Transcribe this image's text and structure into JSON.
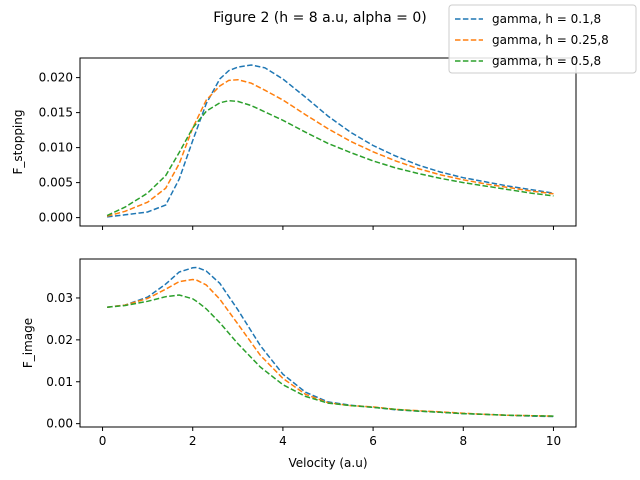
{
  "chart_data": {
    "type": "line",
    "title": "Figure 2 (h = 8 a.u, alpha = 0)",
    "xlabel": "Velocity (a.u)",
    "xlim": [
      -0.5,
      10.5
    ],
    "xticks": [
      0,
      2,
      4,
      6,
      8,
      10
    ],
    "legend_position": "top-right",
    "legend": [
      {
        "label": "gamma, h = 0.1,8",
        "color": "#1f77b4"
      },
      {
        "label": "gamma, h = 0.25,8",
        "color": "#ff7f0e"
      },
      {
        "label": "gamma, h = 0.5,8",
        "color": "#2ca02c"
      }
    ],
    "panels": [
      {
        "ylabel": "F_stopping",
        "ylim": [
          -0.0012,
          0.0228
        ],
        "yticks": [
          0.0,
          0.005,
          0.01,
          0.015,
          0.02
        ],
        "ytick_labels": [
          "0.000",
          "0.005",
          "0.010",
          "0.015",
          "0.020"
        ],
        "series": [
          {
            "name": "gamma, h = 0.1,8",
            "color": "#1f77b4",
            "x": [
              0.1,
              0.5,
              1.0,
              1.4,
              1.7,
              2.0,
              2.3,
              2.6,
              2.8,
              3.0,
              3.3,
              3.6,
              4.0,
              4.5,
              5.0,
              5.5,
              6.0,
              6.5,
              7.0,
              7.5,
              8.0,
              8.5,
              9.0,
              9.5,
              10.0
            ],
            "y": [
              0.0001,
              0.0004,
              0.0008,
              0.0018,
              0.0055,
              0.011,
              0.0163,
              0.0198,
              0.021,
              0.0215,
              0.0218,
              0.0214,
              0.0198,
              0.0172,
              0.0145,
              0.0122,
              0.0103,
              0.0088,
              0.0075,
              0.0065,
              0.0057,
              0.0051,
              0.0045,
              0.004,
              0.0035
            ]
          },
          {
            "name": "gamma, h = 0.25,8",
            "color": "#ff7f0e",
            "x": [
              0.1,
              0.5,
              1.0,
              1.4,
              1.7,
              2.0,
              2.3,
              2.6,
              2.8,
              3.0,
              3.3,
              3.6,
              4.0,
              4.5,
              5.0,
              5.5,
              6.0,
              6.5,
              7.0,
              7.5,
              8.0,
              8.5,
              9.0,
              9.5,
              10.0
            ],
            "y": [
              0.0002,
              0.0009,
              0.0022,
              0.0042,
              0.0077,
              0.0128,
              0.0168,
              0.0188,
              0.0196,
              0.0197,
              0.0192,
              0.0182,
              0.0168,
              0.0147,
              0.0127,
              0.0109,
              0.0094,
              0.0081,
              0.007,
              0.0061,
              0.0054,
              0.0048,
              0.0043,
              0.0038,
              0.0034
            ]
          },
          {
            "name": "gamma, h = 0.5,8",
            "color": "#2ca02c",
            "x": [
              0.1,
              0.5,
              1.0,
              1.4,
              1.7,
              2.0,
              2.3,
              2.6,
              2.8,
              3.0,
              3.3,
              3.6,
              4.0,
              4.5,
              5.0,
              5.5,
              6.0,
              6.5,
              7.0,
              7.5,
              8.0,
              8.5,
              9.0,
              9.5,
              10.0
            ],
            "y": [
              0.0003,
              0.0015,
              0.0035,
              0.006,
              0.0093,
              0.0128,
              0.0152,
              0.0164,
              0.0167,
              0.0166,
              0.016,
              0.0151,
              0.0139,
              0.0122,
              0.0106,
              0.0093,
              0.0081,
              0.0071,
              0.0063,
              0.0056,
              0.005,
              0.0045,
              0.004,
              0.0035,
              0.0031
            ]
          }
        ]
      },
      {
        "ylabel": "F_image",
        "xlabel": "Velocity (a.u)",
        "ylim": [
          -0.0008,
          0.0393
        ],
        "yticks": [
          0.0,
          0.01,
          0.02,
          0.03
        ],
        "ytick_labels": [
          "0.00",
          "0.01",
          "0.02",
          "0.03"
        ],
        "series": [
          {
            "name": "gamma, h = 0.1,8",
            "color": "#1f77b4",
            "x": [
              0.1,
              0.5,
              1.0,
              1.4,
              1.7,
              2.0,
              2.1,
              2.3,
              2.6,
              3.0,
              3.5,
              4.0,
              4.5,
              5.0,
              5.5,
              6.0,
              6.5,
              7.0,
              7.5,
              8.0,
              8.5,
              9.0,
              9.5,
              10.0
            ],
            "y": [
              0.0278,
              0.0283,
              0.0302,
              0.0333,
              0.0362,
              0.0372,
              0.0373,
              0.0364,
              0.0335,
              0.0272,
              0.0186,
              0.0118,
              0.0075,
              0.0052,
              0.0044,
              0.0039,
              0.0033,
              0.003,
              0.0027,
              0.0024,
              0.0022,
              0.002,
              0.0018,
              0.0017
            ]
          },
          {
            "name": "gamma, h = 0.25,8",
            "color": "#ff7f0e",
            "x": [
              0.1,
              0.5,
              1.0,
              1.4,
              1.7,
              2.0,
              2.1,
              2.3,
              2.6,
              3.0,
              3.5,
              4.0,
              4.5,
              5.0,
              5.5,
              6.0,
              6.5,
              7.0,
              7.5,
              8.0,
              8.5,
              9.0,
              9.5,
              10.0
            ],
            "y": [
              0.0278,
              0.0283,
              0.0299,
              0.0321,
              0.0339,
              0.0344,
              0.0342,
              0.0331,
              0.0297,
              0.0238,
              0.0163,
              0.0108,
              0.007,
              0.005,
              0.0043,
              0.004,
              0.0034,
              0.0031,
              0.0028,
              0.0025,
              0.0022,
              0.002,
              0.0019,
              0.0018
            ]
          },
          {
            "name": "gamma, h = 0.5,8",
            "color": "#2ca02c",
            "x": [
              0.1,
              0.5,
              1.0,
              1.4,
              1.7,
              2.0,
              2.1,
              2.3,
              2.6,
              3.0,
              3.5,
              4.0,
              4.5,
              5.0,
              5.5,
              6.0,
              6.5,
              7.0,
              7.5,
              8.0,
              8.5,
              9.0,
              9.5,
              10.0
            ],
            "y": [
              0.0278,
              0.0282,
              0.0292,
              0.0303,
              0.0307,
              0.0298,
              0.0291,
              0.0274,
              0.0241,
              0.0191,
              0.0135,
              0.0093,
              0.0065,
              0.0049,
              0.0043,
              0.0039,
              0.0034,
              0.003,
              0.0027,
              0.0024,
              0.0022,
              0.002,
              0.0019,
              0.0018
            ]
          }
        ]
      }
    ]
  }
}
